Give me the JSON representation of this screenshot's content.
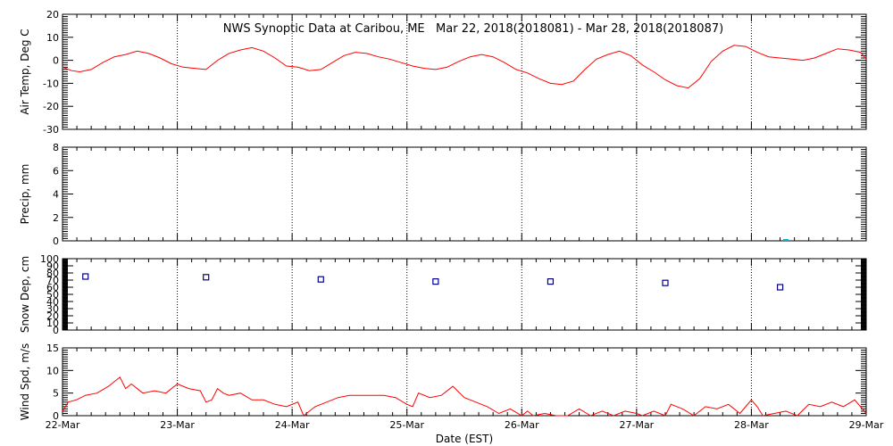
{
  "title": "NWS Synoptic Data at Caribou, ME   Mar 22, 2018(2018081) - Mar 28, 2018(2018087)",
  "xlabel": "Date (EST)",
  "colors": {
    "temp": "#ff0000",
    "precip": "#00b0e0",
    "snow": "#00008b",
    "wind": "#ff0000",
    "axes": "#000000"
  },
  "chart_data": [
    {
      "id": "air-temp",
      "type": "line",
      "ylabel": "Air Temp, Deg C",
      "ylim": [
        -30,
        20
      ],
      "yticks": [
        -30,
        -20,
        -10,
        0,
        10,
        20
      ],
      "xlim_days": [
        0,
        7
      ],
      "xtick_labels": [
        "22-Mar",
        "23-Mar",
        "24-Mar",
        "25-Mar",
        "26-Mar",
        "27-Mar",
        "28-Mar",
        "29-Mar"
      ],
      "grid": "vertical dotted at each day",
      "series": [
        {
          "x": [
            0.0,
            0.08,
            0.15,
            0.25,
            0.35,
            0.45,
            0.55,
            0.65,
            0.75,
            0.85,
            0.95,
            1.05,
            1.15,
            1.25,
            1.35,
            1.45,
            1.55,
            1.65,
            1.75,
            1.85,
            1.95,
            2.05,
            2.15,
            2.25,
            2.35,
            2.45,
            2.55,
            2.65,
            2.75,
            2.85,
            2.95,
            3.05,
            3.15,
            3.25,
            3.35,
            3.45,
            3.55,
            3.65,
            3.75,
            3.85,
            3.95,
            4.05,
            4.15,
            4.25,
            4.35,
            4.45,
            4.55,
            4.65,
            4.75,
            4.85,
            4.95,
            5.05,
            5.15,
            5.25,
            5.35,
            5.45,
            5.55,
            5.65,
            5.75,
            5.85,
            5.95,
            6.05,
            6.15,
            6.25,
            6.35,
            6.45,
            6.55,
            6.65,
            6.75,
            6.85,
            6.95,
            7.0
          ],
          "y": [
            -3,
            -4.5,
            -5,
            -4,
            -1,
            1.5,
            2.5,
            4,
            3,
            1,
            -1.5,
            -3,
            -3.5,
            -4,
            0,
            3,
            4.5,
            5.5,
            4,
            1,
            -2.5,
            -3,
            -4.5,
            -4,
            -1,
            2,
            3.5,
            3,
            1.5,
            0.5,
            -1,
            -2.5,
            -3.5,
            -4,
            -3,
            -0.5,
            1.5,
            2.5,
            1.5,
            -1,
            -4,
            -5.5,
            -8,
            -10,
            -10.5,
            -9,
            -4,
            0.5,
            2.5,
            4,
            2,
            -2,
            -5,
            -8.5,
            -11,
            -12,
            -8,
            -0.5,
            4,
            6.5,
            6,
            3.5,
            1.5,
            1,
            0.5,
            0,
            1,
            3,
            5,
            4.5,
            3.5,
            0.5
          ]
        }
      ]
    },
    {
      "id": "precip",
      "type": "bar",
      "ylabel": "Precip, mm",
      "ylim": [
        0,
        8
      ],
      "yticks": [
        0,
        2,
        4,
        6,
        8
      ],
      "x_days": [
        6.3
      ],
      "values": [
        0.05
      ]
    },
    {
      "id": "snow-depth",
      "type": "scatter",
      "ylabel": "Snow Dep, cm",
      "ylim": [
        0,
        100
      ],
      "yticks": [
        0,
        10,
        20,
        30,
        40,
        50,
        60,
        70,
        80,
        90,
        100
      ],
      "x_days": [
        0.2,
        1.25,
        2.25,
        3.25,
        4.25,
        5.25,
        6.25
      ],
      "values": [
        75,
        74,
        71,
        68,
        68,
        66,
        60
      ]
    },
    {
      "id": "wind-speed",
      "type": "line",
      "ylabel": "Wind Spd, m/s",
      "ylim": [
        0,
        15
      ],
      "yticks": [
        0,
        5,
        10,
        15
      ],
      "series": [
        {
          "x": [
            0.0,
            0.05,
            0.12,
            0.2,
            0.3,
            0.4,
            0.5,
            0.55,
            0.6,
            0.7,
            0.8,
            0.9,
            1.0,
            1.1,
            1.2,
            1.25,
            1.3,
            1.35,
            1.4,
            1.45,
            1.55,
            1.65,
            1.75,
            1.85,
            1.95,
            2.05,
            2.1,
            2.2,
            2.3,
            2.4,
            2.5,
            2.6,
            2.7,
            2.8,
            2.9,
            3.0,
            3.05,
            3.1,
            3.2,
            3.3,
            3.4,
            3.5,
            3.6,
            3.7,
            3.8,
            3.9,
            4.0,
            4.05,
            4.1,
            4.2,
            4.3,
            4.35,
            4.4,
            4.5,
            4.6,
            4.7,
            4.8,
            4.9,
            5.0,
            5.05,
            5.15,
            5.25,
            5.3,
            5.4,
            5.5,
            5.6,
            5.7,
            5.8,
            5.9,
            6.0,
            6.05,
            6.1,
            6.2,
            6.3,
            6.4,
            6.5,
            6.6,
            6.7,
            6.8,
            6.9,
            7.0
          ],
          "y": [
            1,
            3,
            3.5,
            4.5,
            5,
            6.5,
            8.5,
            6,
            7,
            5,
            5.5,
            5,
            7,
            6,
            5.5,
            3,
            3.5,
            6,
            5,
            4.5,
            5,
            3.5,
            3.5,
            2.5,
            2,
            3,
            0,
            2,
            3,
            4,
            4.5,
            4.5,
            4.5,
            4.5,
            4,
            2.5,
            2,
            5,
            4,
            4.5,
            6.5,
            4,
            3,
            2,
            0.5,
            1.5,
            0,
            1,
            0,
            0.5,
            0,
            0,
            0,
            1.5,
            0,
            1,
            0,
            1,
            0.5,
            0,
            1,
            0,
            2.5,
            1.5,
            0,
            2,
            1.5,
            2.5,
            0.5,
            3.5,
            2,
            0,
            0.5,
            1,
            0,
            2.5,
            2,
            3,
            2,
            3.5,
            0.5
          ]
        }
      ]
    }
  ]
}
